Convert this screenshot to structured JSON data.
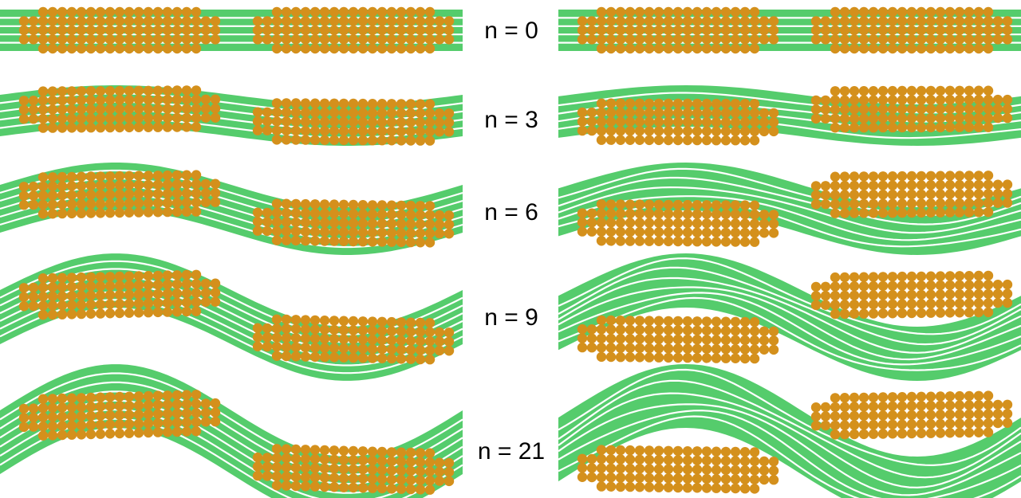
{
  "colors": {
    "fiber": "#55cc6c",
    "particle": "#d4901c",
    "background": "#ffffff",
    "text": "#000000"
  },
  "rows": [
    {
      "label": "n = 0"
    },
    {
      "label": "n = 3"
    },
    {
      "label": "n = 6"
    },
    {
      "label": "n = 9"
    },
    {
      "label": "n = 21"
    }
  ]
}
